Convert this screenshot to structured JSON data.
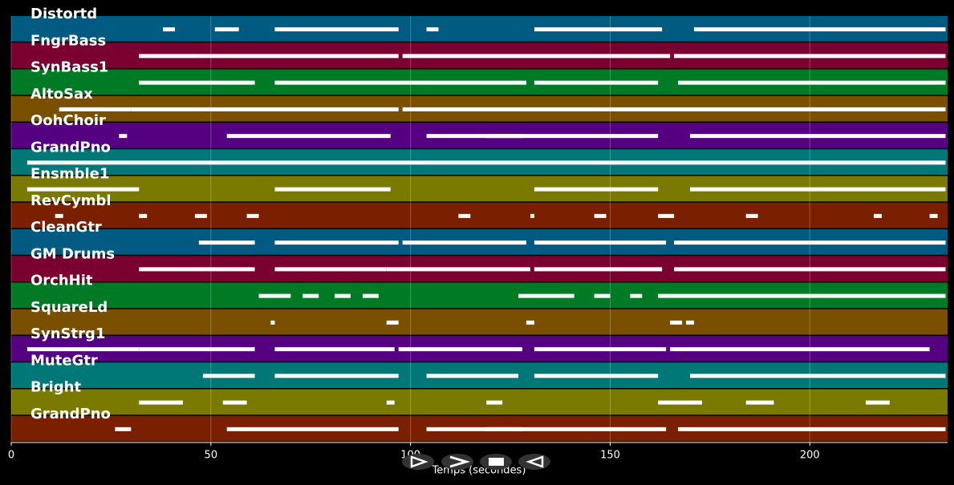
{
  "chart_data": {
    "type": "piano-roll",
    "x_label": "Temps (secondes)",
    "xlim": [
      0,
      234.5
    ],
    "xticks": [
      0,
      50,
      100,
      150,
      200
    ],
    "grid": true,
    "tracks": [
      {
        "name": "Distortd",
        "color": "#005a82",
        "spans": [
          [
            38,
            41
          ],
          [
            51,
            57
          ],
          [
            66,
            97
          ],
          [
            104,
            107
          ],
          [
            131,
            163
          ],
          [
            171,
            234
          ]
        ]
      },
      {
        "name": "FngrBass",
        "color": "#7a0030",
        "spans": [
          [
            32,
            47
          ],
          [
            47,
            97
          ],
          [
            98,
            165
          ],
          [
            166,
            234
          ]
        ]
      },
      {
        "name": "SynBass1",
        "color": "#007a25",
        "spans": [
          [
            32,
            61
          ],
          [
            66,
            129
          ],
          [
            131,
            162
          ],
          [
            167,
            234
          ]
        ]
      },
      {
        "name": "AltoSax",
        "color": "#7a5000",
        "spans": [
          [
            12,
            30
          ],
          [
            30,
            97
          ],
          [
            98,
            234
          ]
        ]
      },
      {
        "name": "OohChoir",
        "color": "#550080",
        "spans": [
          [
            27,
            29
          ],
          [
            54,
            95
          ],
          [
            104,
            128
          ],
          [
            119,
            162
          ],
          [
            170,
            234
          ]
        ]
      },
      {
        "name": "GrandPno",
        "color": "#007878",
        "spans": [
          [
            4,
            234
          ]
        ]
      },
      {
        "name": "Ensmble1",
        "color": "#7a7a00",
        "spans": [
          [
            4,
            32
          ],
          [
            66,
            95
          ],
          [
            131,
            162
          ],
          [
            170,
            234
          ]
        ]
      },
      {
        "name": "RevCymbl",
        "color": "#7a2000",
        "spans": [
          [
            11,
            13
          ],
          [
            32,
            34
          ],
          [
            46,
            49
          ],
          [
            59,
            62
          ],
          [
            112,
            115
          ],
          [
            130,
            131
          ],
          [
            146,
            149
          ],
          [
            162,
            166
          ],
          [
            184,
            187
          ],
          [
            216,
            218
          ],
          [
            230,
            232
          ]
        ]
      },
      {
        "name": "CleanGtr",
        "color": "#005a82",
        "spans": [
          [
            47,
            61
          ],
          [
            66,
            97
          ],
          [
            98,
            129
          ],
          [
            131,
            164
          ],
          [
            166,
            234
          ]
        ]
      },
      {
        "name": "GM Drums",
        "color": "#7a0030",
        "spans": [
          [
            32,
            61
          ],
          [
            66,
            94
          ],
          [
            94,
            130
          ],
          [
            131,
            163
          ],
          [
            166,
            234
          ]
        ]
      },
      {
        "name": "OrchHit",
        "color": "#007a25",
        "spans": [
          [
            62,
            70
          ],
          [
            73,
            77
          ],
          [
            81,
            85
          ],
          [
            88,
            92
          ],
          [
            127,
            141
          ],
          [
            146,
            150
          ],
          [
            155,
            158
          ],
          [
            162,
            234
          ]
        ]
      },
      {
        "name": "SquareLd",
        "color": "#7a5000",
        "spans": [
          [
            65,
            66
          ],
          [
            94,
            97
          ],
          [
            129,
            131
          ],
          [
            165,
            168
          ],
          [
            169,
            171
          ]
        ]
      },
      {
        "name": "SynStrg1",
        "color": "#550080",
        "spans": [
          [
            4,
            32
          ],
          [
            32,
            61
          ],
          [
            66,
            96
          ],
          [
            97,
            128
          ],
          [
            131,
            164
          ],
          [
            165,
            230
          ]
        ]
      },
      {
        "name": "MuteGtr",
        "color": "#007878",
        "spans": [
          [
            48,
            61
          ],
          [
            66,
            97
          ],
          [
            104,
            127
          ],
          [
            131,
            162
          ],
          [
            170,
            234
          ]
        ]
      },
      {
        "name": "Bright",
        "color": "#7a7a00",
        "spans": [
          [
            32,
            43
          ],
          [
            53,
            59
          ],
          [
            94,
            96
          ],
          [
            119,
            123
          ],
          [
            162,
            173
          ],
          [
            184,
            191
          ],
          [
            214,
            220
          ]
        ]
      },
      {
        "name": "GrandPno",
        "color": "#7a2000",
        "spans": [
          [
            26,
            30
          ],
          [
            54,
            97
          ],
          [
            104,
            128
          ],
          [
            119,
            164
          ],
          [
            167,
            234
          ]
        ]
      }
    ]
  }
}
